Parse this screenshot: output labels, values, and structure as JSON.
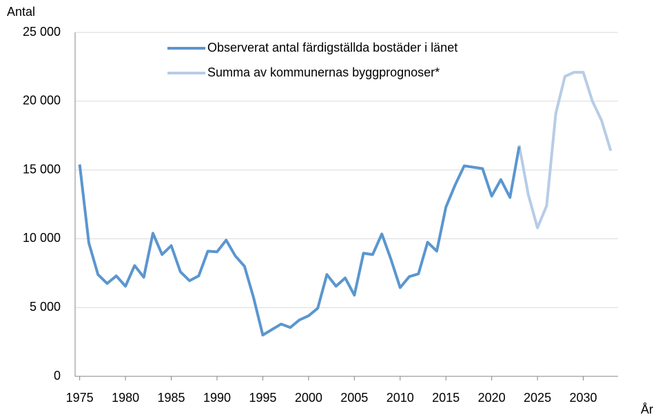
{
  "chart_data": {
    "type": "line",
    "y_label": "Antal",
    "x_label": "År",
    "series": [
      {
        "name": "Observerat antal färdigställda bostäder i länet",
        "color": "#5b96cf",
        "x": [
          1975,
          1976,
          1977,
          1978,
          1979,
          1980,
          1981,
          1982,
          1983,
          1984,
          1985,
          1986,
          1987,
          1988,
          1989,
          1990,
          1991,
          1992,
          1993,
          1994,
          1995,
          1996,
          1997,
          1998,
          1999,
          2000,
          2001,
          2002,
          2003,
          2004,
          2005,
          2006,
          2007,
          2008,
          2009,
          2010,
          2011,
          2012,
          2013,
          2014,
          2015,
          2016,
          2017,
          2018,
          2019,
          2020,
          2021,
          2022,
          2023
        ],
        "values": [
          15400,
          9700,
          7400,
          6750,
          7300,
          6550,
          8050,
          7200,
          10400,
          8850,
          9500,
          7600,
          6950,
          7300,
          9100,
          9050,
          9900,
          8750,
          8000,
          5700,
          3000,
          3400,
          3800,
          3550,
          4100,
          4400,
          4950,
          7400,
          6550,
          7150,
          5900,
          8950,
          8850,
          10350,
          8500,
          6450,
          7250,
          7450,
          9750,
          9100,
          12300,
          13900,
          15300,
          15200,
          15100,
          13100,
          14300,
          13000,
          16700
        ]
      },
      {
        "name": "Summa av kommunernas byggprognoser*",
        "color": "#b7cce6",
        "x": [
          2023,
          2024,
          2025,
          2026,
          2027,
          2028,
          2029,
          2030,
          2031,
          2032,
          2033
        ],
        "values": [
          16800,
          13200,
          10800,
          12400,
          19100,
          21800,
          22100,
          22100,
          20000,
          18600,
          16400
        ]
      }
    ],
    "xlim": [
      1974.5,
      2033.8
    ],
    "xticks": [
      1975,
      1980,
      1985,
      1990,
      1995,
      2000,
      2005,
      2010,
      2015,
      2020,
      2025,
      2030
    ],
    "ylim": [
      0,
      25000
    ],
    "yticks": [
      0,
      {
        "value": 5000,
        "label": "5 000"
      },
      {
        "value": 10000,
        "label": "10 000"
      },
      {
        "value": 15000,
        "label": "15 000"
      },
      {
        "value": 20000,
        "label": "20 000"
      },
      {
        "value": 25000,
        "label": "25 000"
      }
    ],
    "grid": true
  }
}
